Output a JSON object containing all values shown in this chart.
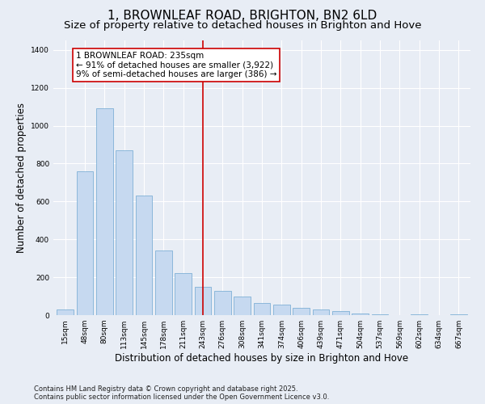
{
  "title": "1, BROWNLEAF ROAD, BRIGHTON, BN2 6LD",
  "subtitle": "Size of property relative to detached houses in Brighton and Hove",
  "xlabel": "Distribution of detached houses by size in Brighton and Hove",
  "ylabel": "Number of detached properties",
  "categories": [
    "15sqm",
    "48sqm",
    "80sqm",
    "113sqm",
    "145sqm",
    "178sqm",
    "211sqm",
    "243sqm",
    "276sqm",
    "308sqm",
    "341sqm",
    "374sqm",
    "406sqm",
    "439sqm",
    "471sqm",
    "504sqm",
    "537sqm",
    "569sqm",
    "602sqm",
    "634sqm",
    "667sqm"
  ],
  "values": [
    30,
    760,
    1090,
    870,
    630,
    340,
    220,
    150,
    130,
    100,
    65,
    55,
    40,
    30,
    20,
    10,
    5,
    0,
    5,
    0,
    5
  ],
  "bar_color": "#c6d9f0",
  "bar_edge_color": "#6ea6d0",
  "bar_width": 0.85,
  "vline_x": 7,
  "vline_color": "#cc0000",
  "annotation_text": "1 BROWNLEAF ROAD: 235sqm\n← 91% of detached houses are smaller (3,922)\n9% of semi-detached houses are larger (386) →",
  "annotation_box_color": "#ffffff",
  "annotation_box_edge": "#cc0000",
  "ylim": [
    0,
    1450
  ],
  "yticks": [
    0,
    200,
    400,
    600,
    800,
    1000,
    1200,
    1400
  ],
  "background_color": "#e8edf5",
  "footer_text": "Contains HM Land Registry data © Crown copyright and database right 2025.\nContains public sector information licensed under the Open Government Licence v3.0.",
  "title_fontsize": 11,
  "subtitle_fontsize": 9.5,
  "tick_fontsize": 6.5,
  "label_fontsize": 8.5,
  "annotation_fontsize": 7.5
}
